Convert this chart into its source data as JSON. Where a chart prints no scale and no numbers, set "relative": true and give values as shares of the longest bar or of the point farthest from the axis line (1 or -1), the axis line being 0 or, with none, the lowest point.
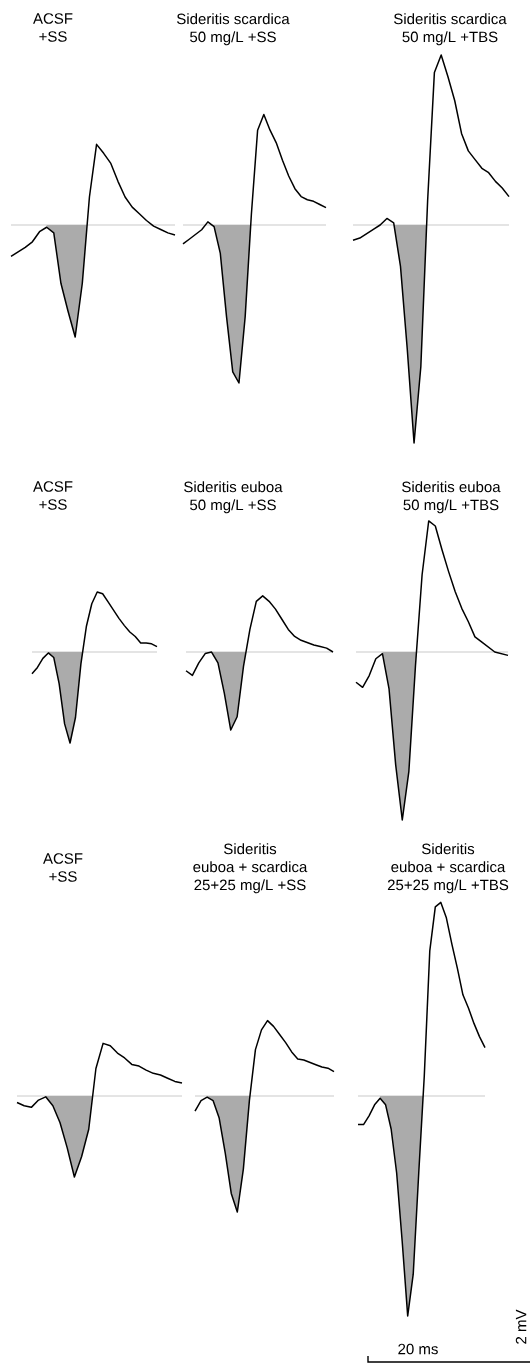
{
  "chart_data": [
    {
      "type": "line",
      "relative": true,
      "title": "ACSF",
      "subtitle": "+SS",
      "color": "#000000",
      "categories": [
        null,
        null,
        null,
        null,
        null,
        null,
        null,
        null,
        null,
        null,
        null,
        null,
        null,
        null,
        null,
        null,
        null,
        null,
        null,
        null,
        null,
        null,
        null,
        null
      ],
      "values": [
        -0.28,
        -0.24,
        -0.2,
        -0.15,
        -0.06,
        -0.02,
        -0.07,
        -0.52,
        -0.77,
        -1,
        -0.52,
        0.25,
        0.72,
        0.64,
        0.55,
        0.39,
        0.25,
        0.16,
        0.1,
        0.04,
        -0.01,
        -0.04,
        -0.07,
        -0.09
      ]
    },
    {
      "type": "line",
      "relative": true,
      "title": "Sideritis scardica",
      "subtitle": "50 mg/L +SS",
      "color": "#000000",
      "categories": [
        null,
        null,
        null,
        null,
        null,
        null,
        null,
        null,
        null,
        null,
        null,
        null,
        null,
        null,
        null,
        null,
        null,
        null,
        null,
        null,
        null,
        null,
        null,
        null
      ],
      "values": [
        -0.12,
        -0.09,
        -0.06,
        -0.03,
        0.02,
        -0.01,
        -0.18,
        -0.58,
        -0.93,
        -1,
        -0.58,
        0.07,
        0.6,
        0.7,
        0.6,
        0.52,
        0.41,
        0.31,
        0.23,
        0.18,
        0.16,
        0.15,
        0.13,
        0.11
      ]
    },
    {
      "type": "line",
      "relative": true,
      "title": "Sideritis scardica",
      "subtitle": "50 mg/L +TBS",
      "color": "#000000",
      "categories": [
        null,
        null,
        null,
        null,
        null,
        null,
        null,
        null,
        null,
        null,
        null,
        null,
        null,
        null,
        null,
        null,
        null,
        null,
        null,
        null,
        null,
        null,
        null,
        null
      ],
      "values": [
        -0.07,
        -0.06,
        -0.04,
        -0.02,
        0,
        0.03,
        0.01,
        -0.19,
        -0.57,
        -1,
        -0.65,
        0.11,
        0.7,
        0.78,
        0.68,
        0.57,
        0.42,
        0.34,
        0.3,
        0.26,
        0.24,
        0.2,
        0.17,
        0.13
      ]
    },
    {
      "type": "line",
      "relative": true,
      "title": "ACSF",
      "subtitle": "+SS",
      "color": "#000000",
      "categories": [
        null,
        null,
        null,
        null,
        null,
        null,
        null,
        null,
        null,
        null,
        null,
        null,
        null,
        null,
        null,
        null,
        null,
        null,
        null,
        null,
        null,
        null,
        null,
        null
      ],
      "values": [
        -0.24,
        -0.17,
        -0.07,
        -0.01,
        -0.06,
        -0.35,
        -0.79,
        -1,
        -0.72,
        -0.13,
        0.28,
        0.53,
        0.66,
        0.64,
        0.55,
        0.46,
        0.37,
        0.29,
        0.22,
        0.17,
        0.1,
        0.1,
        0.09,
        0.06
      ]
    },
    {
      "type": "line",
      "relative": true,
      "title": "Sideritis euboa",
      "subtitle": "50 mg/L +SS",
      "color": "#000000",
      "categories": [
        null,
        null,
        null,
        null,
        null,
        null,
        null,
        null,
        null,
        null,
        null,
        null,
        null,
        null,
        null,
        null,
        null,
        null,
        null,
        null,
        null,
        null,
        null,
        null
      ],
      "values": [
        -0.24,
        -0.3,
        -0.14,
        -0.02,
        0,
        -0.14,
        -0.53,
        -1,
        -0.83,
        -0.18,
        0.29,
        0.65,
        0.72,
        0.65,
        0.55,
        0.42,
        0.29,
        0.2,
        0.15,
        0.12,
        0.09,
        0.07,
        0.05,
        0
      ]
    },
    {
      "type": "line",
      "relative": true,
      "title": "Sideritis euboa",
      "subtitle": "50 mg/L +TBS",
      "color": "#000000",
      "categories": [
        null,
        null,
        null,
        null,
        null,
        null,
        null,
        null,
        null,
        null,
        null,
        null,
        null,
        null,
        null,
        null,
        null,
        null,
        null,
        null,
        null,
        null,
        null,
        null
      ],
      "values": [
        -0.18,
        -0.21,
        -0.14,
        -0.04,
        -0.01,
        -0.22,
        -0.67,
        -1,
        -0.71,
        -0.08,
        0.46,
        0.78,
        0.75,
        0.61,
        0.48,
        0.36,
        0.26,
        0.18,
        0.09,
        0.06,
        0.03,
        0,
        -0.01,
        -0.02
      ]
    },
    {
      "type": "line",
      "relative": true,
      "title": "ACSF",
      "subtitle": "+SS",
      "color": "#000000",
      "categories": [
        null,
        null,
        null,
        null,
        null,
        null,
        null,
        null,
        null,
        null,
        null,
        null,
        null,
        null,
        null,
        null,
        null,
        null,
        null,
        null,
        null,
        null,
        null,
        null
      ],
      "values": [
        -0.08,
        -0.12,
        -0.14,
        -0.05,
        -0.01,
        -0.12,
        -0.33,
        -0.64,
        -1,
        -0.75,
        -0.41,
        0.34,
        0.65,
        0.62,
        0.53,
        0.47,
        0.39,
        0.37,
        0.32,
        0.28,
        0.26,
        0.22,
        0.18,
        0.16
      ]
    },
    {
      "type": "line",
      "relative": true,
      "title": "Sideritis euboa + scardica",
      "subtitle": "25+25 mg/L +SS",
      "color": "#000000",
      "categories": [
        null,
        null,
        null,
        null,
        null,
        null,
        null,
        null,
        null,
        null,
        null,
        null,
        null,
        null,
        null,
        null,
        null,
        null,
        null,
        null,
        null,
        null,
        null,
        null
      ],
      "values": [
        -0.13,
        -0.04,
        -0.01,
        -0.04,
        -0.19,
        -0.49,
        -0.84,
        -1,
        -0.63,
        -0.04,
        0.4,
        0.57,
        0.65,
        0.6,
        0.53,
        0.46,
        0.38,
        0.32,
        0.31,
        0.29,
        0.27,
        0.25,
        0.24,
        0.21
      ]
    },
    {
      "type": "line",
      "relative": true,
      "title": "Sideritis euboa + scardica",
      "subtitle": "25+25 mg/L +TBS",
      "color": "#000000",
      "categories": [
        null,
        null,
        null,
        null,
        null,
        null,
        null,
        null,
        null,
        null,
        null,
        null,
        null,
        null,
        null,
        null,
        null,
        null,
        null,
        null,
        null,
        null,
        null,
        null
      ],
      "values": [
        -0.13,
        -0.13,
        -0.09,
        -0.04,
        -0.01,
        -0.04,
        -0.15,
        -0.35,
        -0.66,
        -1,
        -0.81,
        -0.35,
        0.09,
        0.66,
        0.86,
        0.88,
        0.81,
        0.69,
        0.58,
        0.46,
        0.4,
        0.33,
        0.27,
        0.22
      ],
      "annotations": [
        "20 ms",
        "2 mV"
      ]
    }
  ]
}
